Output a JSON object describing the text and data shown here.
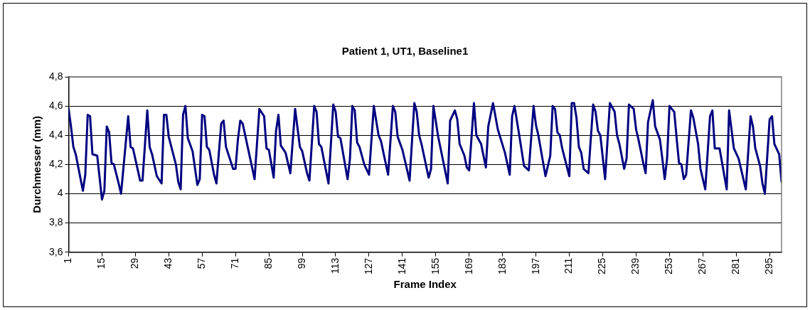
{
  "chart_data": {
    "type": "line",
    "title": "Patient 1, UT1, Baseline1",
    "xlabel": "Frame Index",
    "ylabel": "Durchmesser (mm)",
    "x": [
      1,
      2,
      3,
      4,
      7,
      8,
      9,
      10,
      11,
      13,
      15,
      16,
      17,
      18,
      19,
      20,
      22,
      23,
      26,
      27,
      28,
      31,
      32,
      34,
      35,
      36,
      38,
      40,
      41,
      42,
      43,
      46,
      47,
      48,
      49,
      50,
      51,
      53,
      55,
      56,
      57,
      58,
      59,
      60,
      62,
      63,
      65,
      66,
      67,
      70,
      71,
      72,
      73,
      74,
      79,
      81,
      83,
      84,
      85,
      87,
      88,
      89,
      90,
      92,
      94,
      96,
      98,
      99,
      101,
      102,
      104,
      105,
      106,
      107,
      110,
      112,
      113,
      114,
      115,
      118,
      119,
      120,
      121,
      122,
      123,
      125,
      127,
      129,
      131,
      132,
      135,
      137,
      138,
      139,
      141,
      144,
      146,
      147,
      148,
      149,
      152,
      153,
      154,
      156,
      157,
      160,
      161,
      163,
      164,
      165,
      167,
      168,
      169,
      171,
      172,
      174,
      176,
      177,
      179,
      181,
      184,
      186,
      187,
      188,
      190,
      192,
      194,
      196,
      197,
      198,
      201,
      203,
      204,
      205,
      206,
      207,
      208,
      211,
      212,
      213,
      214,
      215,
      216,
      217,
      219,
      221,
      222,
      223,
      224,
      226,
      228,
      230,
      231,
      232,
      234,
      235,
      236,
      238,
      239,
      240,
      242,
      243,
      244,
      246,
      247,
      249,
      250,
      251,
      252,
      253,
      255,
      256,
      257,
      258,
      259,
      260,
      262,
      263,
      265,
      266,
      268,
      270,
      271,
      272,
      274,
      277,
      278,
      280,
      282,
      285,
      287,
      288,
      289,
      291,
      292,
      293,
      295,
      296,
      297,
      299,
      300
    ],
    "values": [
      4.58,
      4.46,
      4.32,
      4.27,
      4.02,
      4.13,
      4.54,
      4.53,
      4.27,
      4.26,
      3.96,
      4.02,
      4.46,
      4.42,
      4.21,
      4.2,
      4.07,
      4.0,
      4.53,
      4.32,
      4.31,
      4.09,
      4.09,
      4.57,
      4.32,
      4.27,
      4.12,
      4.07,
      4.54,
      4.54,
      4.39,
      4.2,
      4.08,
      4.03,
      4.54,
      4.6,
      4.38,
      4.29,
      4.06,
      4.1,
      4.54,
      4.53,
      4.32,
      4.3,
      4.13,
      4.07,
      4.48,
      4.5,
      4.32,
      4.17,
      4.17,
      4.37,
      4.5,
      4.48,
      4.1,
      4.58,
      4.53,
      4.31,
      4.3,
      4.11,
      4.43,
      4.54,
      4.33,
      4.28,
      4.14,
      4.58,
      4.32,
      4.29,
      4.14,
      4.09,
      4.6,
      4.56,
      4.34,
      4.32,
      4.07,
      4.61,
      4.56,
      4.39,
      4.38,
      4.1,
      4.24,
      4.6,
      4.57,
      4.35,
      4.32,
      4.2,
      4.13,
      4.6,
      4.4,
      4.36,
      4.13,
      4.6,
      4.56,
      4.39,
      4.3,
      4.09,
      4.62,
      4.56,
      4.4,
      4.34,
      4.11,
      4.17,
      4.6,
      4.39,
      4.31,
      4.07,
      4.5,
      4.57,
      4.51,
      4.34,
      4.26,
      4.18,
      4.16,
      4.62,
      4.4,
      4.34,
      4.18,
      4.46,
      4.62,
      4.44,
      4.28,
      4.13,
      4.53,
      4.6,
      4.4,
      4.19,
      4.16,
      4.6,
      4.47,
      4.4,
      4.12,
      4.26,
      4.6,
      4.58,
      4.42,
      4.4,
      4.31,
      4.12,
      4.62,
      4.62,
      4.52,
      4.32,
      4.28,
      4.17,
      4.14,
      4.61,
      4.56,
      4.43,
      4.4,
      4.1,
      4.62,
      4.56,
      4.4,
      4.34,
      4.17,
      4.24,
      4.61,
      4.58,
      4.44,
      4.37,
      4.21,
      4.14,
      4.49,
      4.64,
      4.46,
      4.37,
      4.24,
      4.1,
      4.24,
      4.6,
      4.56,
      4.38,
      4.21,
      4.2,
      4.1,
      4.13,
      4.57,
      4.52,
      4.34,
      4.17,
      4.03,
      4.53,
      4.57,
      4.31,
      4.31,
      4.03,
      4.57,
      4.31,
      4.24,
      4.03,
      4.53,
      4.46,
      4.31,
      4.19,
      4.07,
      4.0,
      4.51,
      4.53,
      4.34,
      4.27,
      4.08
    ],
    "color": "#000080",
    "xlim": [
      1,
      300
    ],
    "xticks": [
      1,
      15,
      29,
      43,
      57,
      71,
      85,
      99,
      113,
      127,
      141,
      155,
      169,
      183,
      197,
      211,
      225,
      239,
      253,
      267,
      281,
      295
    ],
    "ylim": [
      3.6,
      4.8
    ],
    "yticks": [
      {
        "value": 3.6,
        "label": "3,6"
      },
      {
        "value": 3.8,
        "label": "3,8"
      },
      4,
      {
        "value": 4.2,
        "label": "4,2"
      },
      {
        "value": 4.4,
        "label": "4,4"
      },
      {
        "value": 4.6,
        "label": "4,6"
      },
      {
        "value": 4.8,
        "label": "4,8"
      }
    ],
    "grid": "y",
    "marker": "none",
    "line_style": "solid"
  }
}
